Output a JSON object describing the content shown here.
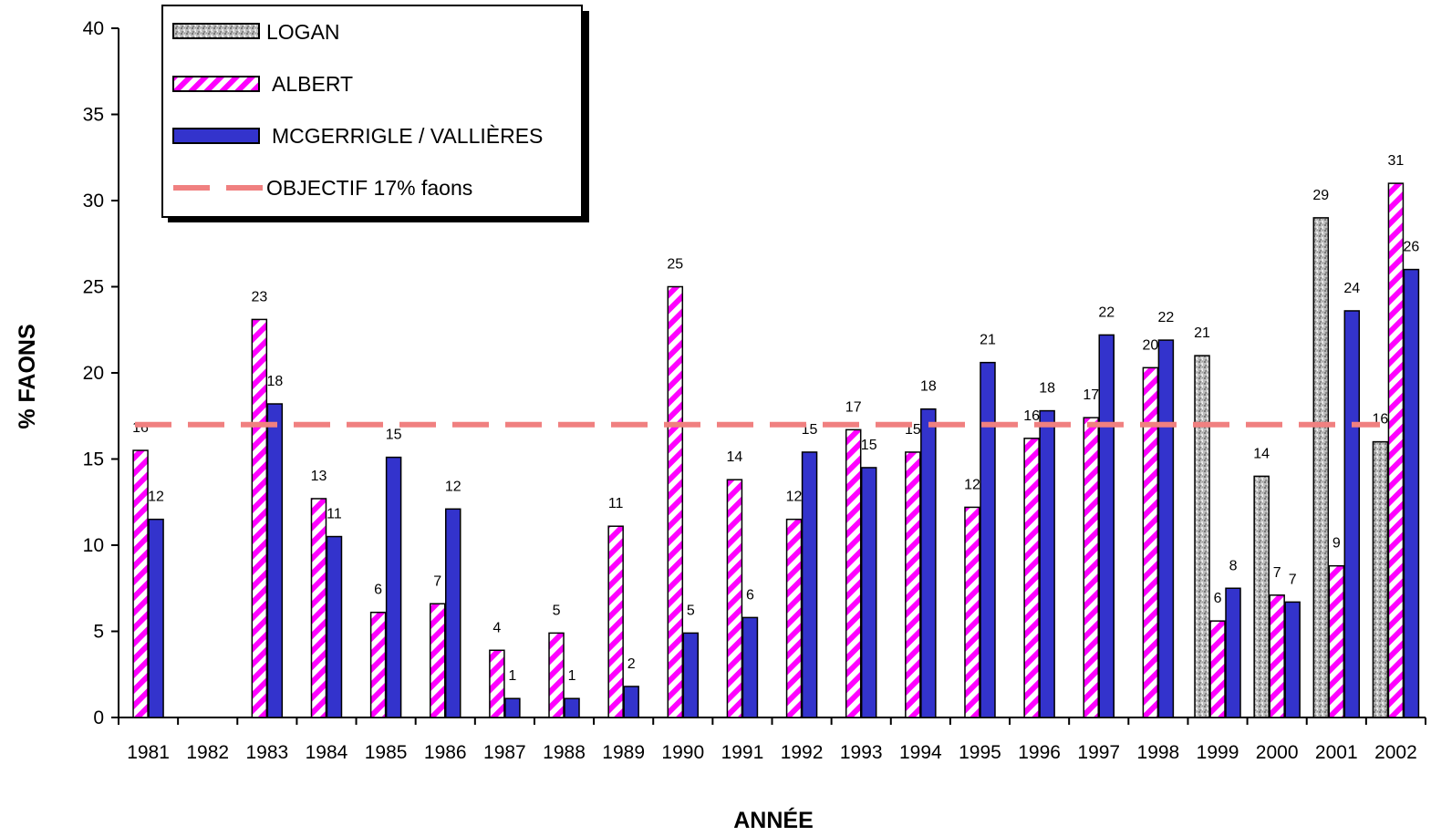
{
  "chart_data": {
    "type": "bar",
    "title": "",
    "xlabel": "ANNÉE",
    "ylabel": "% FAONS",
    "ylim": [
      0,
      40
    ],
    "yticks": [
      0,
      5,
      10,
      15,
      20,
      25,
      30,
      35,
      40
    ],
    "categories": [
      "1981",
      "1982",
      "1983",
      "1984",
      "1985",
      "1986",
      "1987",
      "1988",
      "1989",
      "1990",
      "1991",
      "1992",
      "1993",
      "1994",
      "1995",
      "1996",
      "1997",
      "1998",
      "1999",
      "2000",
      "2001",
      "2002"
    ],
    "series": [
      {
        "name": "LOGAN",
        "style": "gray-speckled",
        "values": [
          null,
          null,
          null,
          null,
          null,
          null,
          null,
          null,
          null,
          null,
          null,
          null,
          null,
          null,
          null,
          null,
          null,
          null,
          21,
          14,
          29,
          16
        ],
        "labels": [
          "",
          "",
          "",
          "",
          "",
          "",
          "",
          "",
          "",
          "",
          "",
          "",
          "",
          "",
          "",
          "",
          "",
          "",
          "21",
          "14",
          "29",
          "16"
        ]
      },
      {
        "name": "ALBERT",
        "style": "magenta-hatch",
        "values": [
          15.5,
          null,
          23.1,
          12.7,
          6.1,
          6.6,
          3.9,
          4.9,
          11.1,
          25,
          13.8,
          11.5,
          16.7,
          15.4,
          12.2,
          16.2,
          17.4,
          20.3,
          5.6,
          7.1,
          8.8,
          31
        ],
        "labels": [
          "16",
          "",
          "23",
          "13",
          "6",
          "7",
          "4",
          "5",
          "11",
          "25",
          "14",
          "12",
          "17",
          "15",
          "12",
          "16",
          "17",
          "20",
          "6",
          "7",
          "9",
          "31"
        ]
      },
      {
        "name": "MCGERRIGLE / VALLIÈRES",
        "style": "blue-solid",
        "values": [
          11.5,
          null,
          18.2,
          10.5,
          15.1,
          12.1,
          1.1,
          1.1,
          1.8,
          4.9,
          5.8,
          15.4,
          14.5,
          17.9,
          20.6,
          17.8,
          22.2,
          21.9,
          7.5,
          6.7,
          23.6,
          26
        ],
        "labels": [
          "12",
          "",
          "18",
          "11",
          "15",
          "12",
          "1",
          "1",
          "2",
          "5",
          "6",
          "15",
          "15",
          "18",
          "21",
          "18",
          "22",
          "22",
          "8",
          "7",
          "24",
          "26"
        ]
      }
    ],
    "reference_line": {
      "name": "OBJECTIF 17% faons",
      "value": 17,
      "color": "#f08080"
    },
    "colors": {
      "albert_stripe": "#ff00ff",
      "mcgerrigle": "#3333cc",
      "logan": "#b8b8b8"
    },
    "legend": {
      "position": "top-left"
    },
    "grid": false
  }
}
